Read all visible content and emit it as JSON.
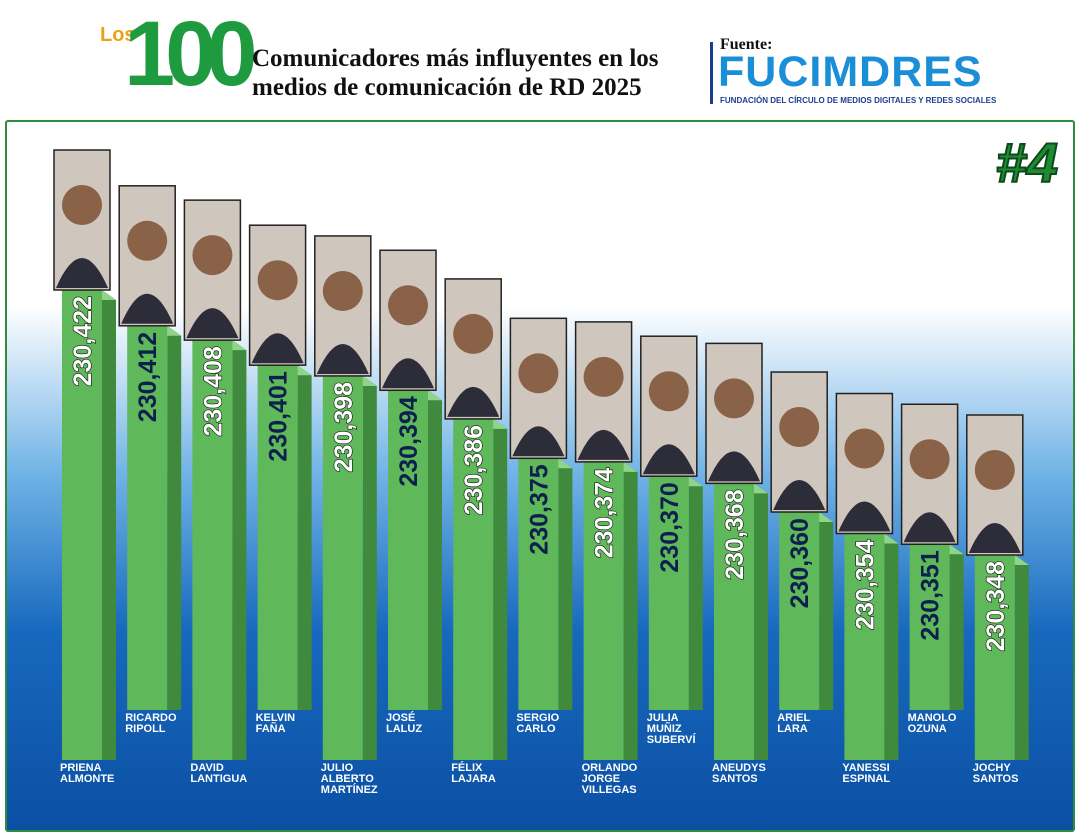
{
  "header": {
    "logo_prefix": "Los",
    "logo_number": "100",
    "title": "Comunicadores más influyentes en los medios de comunicación de RD 2025",
    "source_label": "Fuente:",
    "source": "FUCIMDRES",
    "source_subtitle": "FUNDACIÓN DEL CÍRCULO DE MEDIOS DIGITALES Y REDES SOCIALES",
    "rank": "#4"
  },
  "chart_data": {
    "type": "bar",
    "categories": [
      "PRIENA\nALMONTE",
      "RICARDO\nRIPOLL",
      "DAVID\nLANTIGUA",
      "KELVIN\nFAÑA",
      "JULIO\nALBERTO\nMARTÍNEZ",
      "JOSÉ\nLALUZ",
      "FÉLIX\nLAJARA",
      "SERGIO\nCARLO",
      "ORLANDO\nJORGE\nVILLEGAS",
      "JULIA\nMUÑIZ\nSUBERVÍ",
      "ANEUDYS\nSANTOS",
      "ARIEL\nLARA",
      "YANESSI\nESPINAL",
      "MANOLO\nOZUNA",
      "JOCHY\nSANTOS"
    ],
    "values": [
      230422,
      230412,
      230408,
      230401,
      230398,
      230394,
      230386,
      230375,
      230374,
      230370,
      230368,
      230360,
      230354,
      230351,
      230348
    ],
    "value_labels": [
      "230,422",
      "230,412",
      "230,408",
      "230,401",
      "230,398",
      "230,394",
      "230,386",
      "230,375",
      "230,374",
      "230,370",
      "230,368",
      "230,360",
      "230,354",
      "230,351",
      "230,348"
    ],
    "color": "#5fb85a"
  }
}
